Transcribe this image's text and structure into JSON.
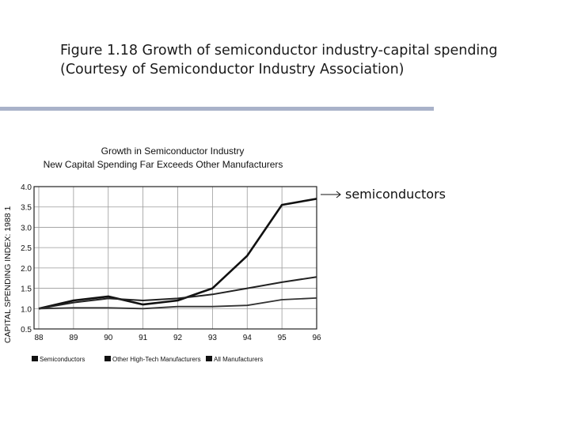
{
  "slide": {
    "title": "Figure 1.18 Growth of semiconductor industry-capital spending (Courtesy of Semiconductor Industry Association)",
    "callout_label": "semiconductors",
    "rule_color": "#a9b2c9"
  },
  "chart_data": {
    "type": "line",
    "title": "Growth in Semiconductor Industry",
    "subtitle": "New Capital Spending Far Exceeds Other Manufacturers",
    "ylabel": "CAPITAL SPENDING INDEX: 1988 1",
    "xlabel": "",
    "x": [
      "88",
      "89",
      "90",
      "91",
      "92",
      "93",
      "94",
      "95",
      "96"
    ],
    "yticks": [
      "0.5",
      "1.0",
      "1.5",
      "2.0",
      "2.5",
      "3.0",
      "3.5",
      "4.0"
    ],
    "ylim": [
      0.5,
      4.0
    ],
    "grid": true,
    "legend_position": "bottom",
    "series": [
      {
        "name": "Semiconductors",
        "values": [
          1.0,
          1.2,
          1.3,
          1.1,
          1.2,
          1.5,
          2.3,
          3.55,
          3.7
        ]
      },
      {
        "name": "Other High-Tech Manufacturers",
        "values": [
          1.0,
          1.15,
          1.25,
          1.2,
          1.25,
          1.35,
          1.5,
          1.65,
          1.78
        ]
      },
      {
        "name": "All Manufacturers",
        "values": [
          1.0,
          1.02,
          1.02,
          1.0,
          1.05,
          1.05,
          1.08,
          1.22,
          1.26
        ]
      }
    ]
  }
}
